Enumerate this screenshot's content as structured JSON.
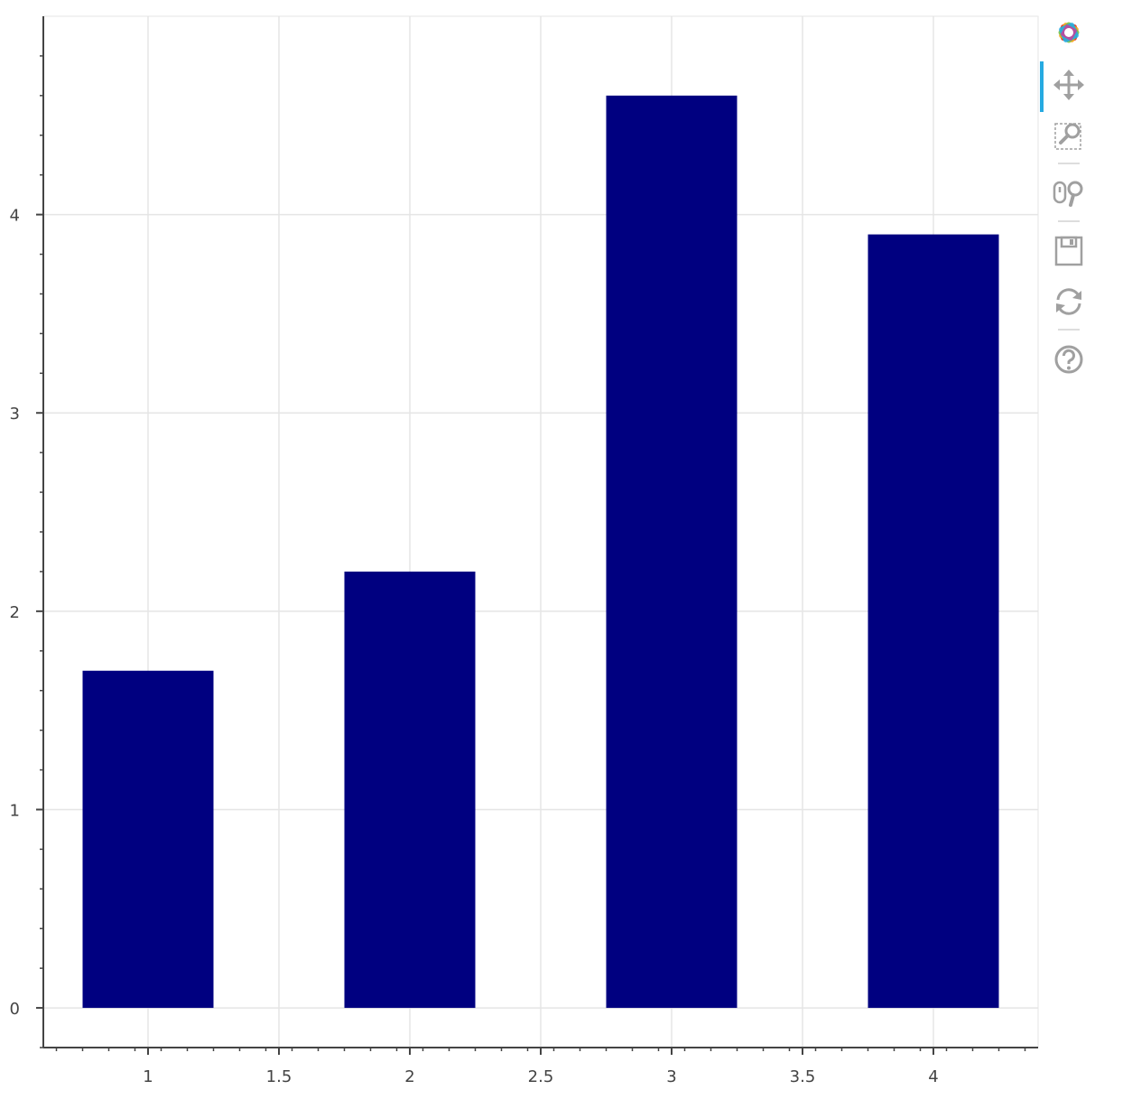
{
  "chart_data": {
    "type": "bar",
    "x": [
      1,
      2,
      3,
      4
    ],
    "values": [
      1.7,
      2.2,
      4.6,
      3.9
    ],
    "bar_width": 0.5,
    "title": "",
    "xlabel": "",
    "ylabel": "",
    "xlim": [
      0.6,
      4.4
    ],
    "ylim": [
      -0.2,
      5.0
    ],
    "x_ticks": [
      {
        "value": 1,
        "label": "1"
      },
      {
        "value": 1.5,
        "label": "1.5"
      },
      {
        "value": 2,
        "label": "2"
      },
      {
        "value": 2.5,
        "label": "2.5"
      },
      {
        "value": 3,
        "label": "3"
      },
      {
        "value": 3.5,
        "label": "3.5"
      },
      {
        "value": 4,
        "label": "4"
      }
    ],
    "y_ticks": [
      {
        "value": 0,
        "label": "0"
      },
      {
        "value": 1,
        "label": "1"
      },
      {
        "value": 2,
        "label": "2"
      },
      {
        "value": 3,
        "label": "3"
      },
      {
        "value": 4,
        "label": "4"
      }
    ],
    "grid": true,
    "colors": {
      "bar": "#000080",
      "grid": "#e5e5e5",
      "axis": "#444444"
    }
  },
  "toolbar": {
    "tools": [
      {
        "name": "bokeh-logo-icon",
        "interactable": true
      },
      {
        "name": "pan-icon",
        "interactable": true,
        "active": true
      },
      {
        "name": "box-zoom-icon",
        "interactable": true
      },
      {
        "name": "wheel-zoom-icon",
        "interactable": true
      },
      {
        "name": "save-icon",
        "interactable": true
      },
      {
        "name": "reset-icon",
        "interactable": true
      },
      {
        "name": "help-icon",
        "interactable": true
      }
    ],
    "accent_color": "#26aae1",
    "icon_color": "#a0a0a0"
  }
}
